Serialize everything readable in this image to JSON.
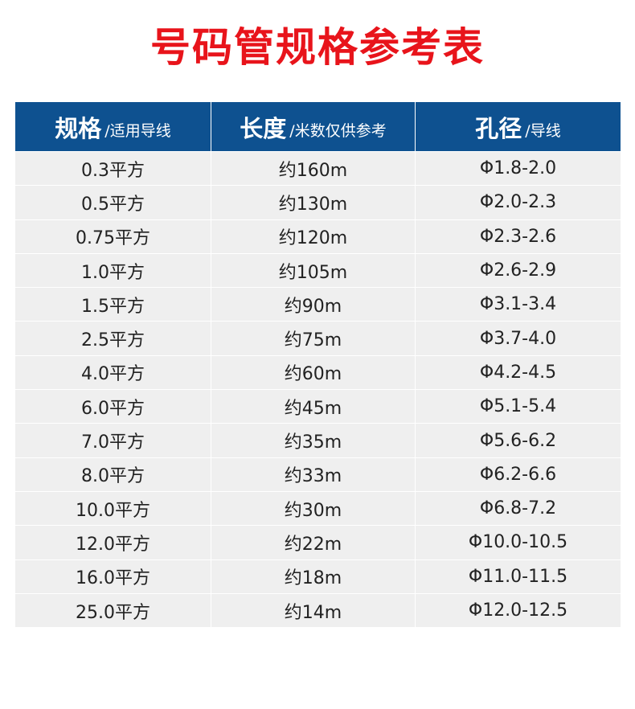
{
  "title": "号码管规格参考表",
  "colors": {
    "title": "#e8141b",
    "header_bg": "#0e5190",
    "row_bg": "#efefef"
  },
  "headers": [
    {
      "main": "规格",
      "sub": "/适用导线"
    },
    {
      "main": "长度",
      "sub": "/米数仅供参考"
    },
    {
      "main": "孔径",
      "sub": "/导线"
    }
  ],
  "rows": [
    [
      "0.3平方",
      "约160m",
      "Φ1.8-2.0"
    ],
    [
      "0.5平方",
      "约130m",
      "Φ2.0-2.3"
    ],
    [
      "0.75平方",
      "约120m",
      "Φ2.3-2.6"
    ],
    [
      "1.0平方",
      "约105m",
      "Φ2.6-2.9"
    ],
    [
      "1.5平方",
      "约90m",
      "Φ3.1-3.4"
    ],
    [
      "2.5平方",
      "约75m",
      "Φ3.7-4.0"
    ],
    [
      "4.0平方",
      "约60m",
      "Φ4.2-4.5"
    ],
    [
      "6.0平方",
      "约45m",
      "Φ5.1-5.4"
    ],
    [
      "7.0平方",
      "约35m",
      "Φ5.6-6.2"
    ],
    [
      "8.0平方",
      "约33m",
      "Φ6.2-6.6"
    ],
    [
      "10.0平方",
      "约30m",
      "Φ6.8-7.2"
    ],
    [
      "12.0平方",
      "约22m",
      "Φ10.0-10.5"
    ],
    [
      "16.0平方",
      "约18m",
      "Φ11.0-11.5"
    ],
    [
      "25.0平方",
      "约14m",
      "Φ12.0-12.5"
    ]
  ]
}
